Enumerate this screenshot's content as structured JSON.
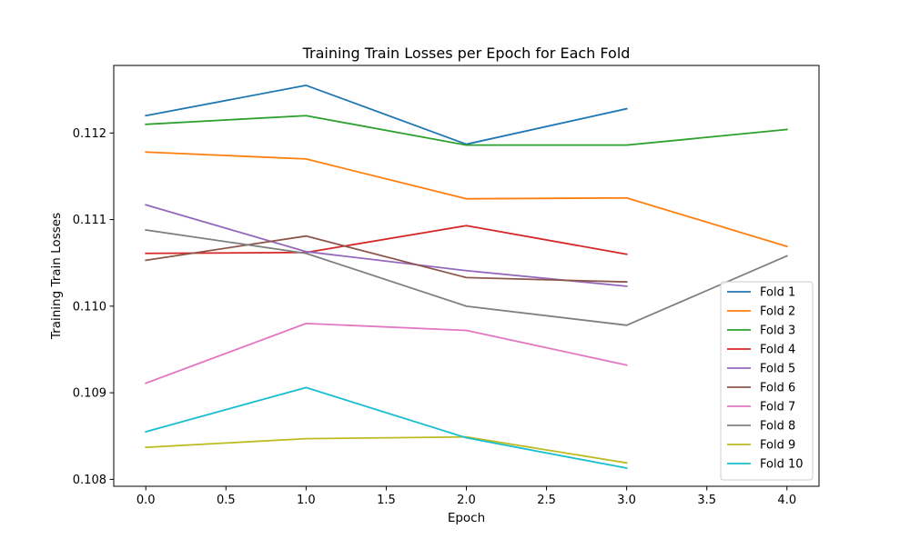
{
  "chart_data": {
    "type": "line",
    "title": "Training Train Losses per Epoch for Each Fold",
    "xlabel": "Epoch",
    "ylabel": "Training Train Losses",
    "xlim": [
      -0.2,
      4.2
    ],
    "ylim": [
      0.10792,
      0.11278
    ],
    "x_ticks": [
      0.0,
      0.5,
      1.0,
      1.5,
      2.0,
      2.5,
      3.0,
      3.5,
      4.0
    ],
    "x_tick_labels": [
      "0.0",
      "0.5",
      "1.0",
      "1.5",
      "2.0",
      "2.5",
      "3.0",
      "3.5",
      "4.0"
    ],
    "y_ticks": [
      0.108,
      0.109,
      0.11,
      0.111,
      0.112
    ],
    "y_tick_labels": [
      "0.108",
      "0.109",
      "0.110",
      "0.111",
      "0.112"
    ],
    "grid": false,
    "legend_position": "lower-right",
    "series": [
      {
        "name": "Fold 1",
        "color": "#1f77b4",
        "x": [
          0,
          1,
          2,
          3
        ],
        "values": [
          0.1122,
          0.11255,
          0.11187,
          0.11228
        ]
      },
      {
        "name": "Fold 2",
        "color": "#ff7f0e",
        "x": [
          0,
          1,
          2,
          3,
          4
        ],
        "values": [
          0.11178,
          0.1117,
          0.11124,
          0.11125,
          0.11069
        ]
      },
      {
        "name": "Fold 3",
        "color": "#2ca02c",
        "x": [
          0,
          1,
          2,
          3,
          4
        ],
        "values": [
          0.1121,
          0.1122,
          0.11186,
          0.11186,
          0.11204
        ]
      },
      {
        "name": "Fold 4",
        "color": "#d62728",
        "x": [
          0,
          1,
          2,
          3
        ],
        "values": [
          0.11061,
          0.11062,
          0.11093,
          0.1106
        ]
      },
      {
        "name": "Fold 5",
        "color": "#9467bd",
        "x": [
          0,
          1,
          2,
          3
        ],
        "values": [
          0.11117,
          0.11063,
          0.11041,
          0.11023
        ]
      },
      {
        "name": "Fold 6",
        "color": "#8c564b",
        "x": [
          0,
          1,
          2,
          3
        ],
        "values": [
          0.11053,
          0.11081,
          0.11033,
          0.11028
        ]
      },
      {
        "name": "Fold 7",
        "color": "#e377c2",
        "x": [
          0,
          1,
          2,
          3
        ],
        "values": [
          0.10911,
          0.1098,
          0.10972,
          0.10932
        ]
      },
      {
        "name": "Fold 8",
        "color": "#7f7f7f",
        "x": [
          0,
          1,
          2,
          3,
          4
        ],
        "values": [
          0.11088,
          0.11061,
          0.11,
          0.10978,
          0.11058
        ]
      },
      {
        "name": "Fold 9",
        "color": "#bcbd22",
        "x": [
          0,
          1,
          2,
          3
        ],
        "values": [
          0.10837,
          0.10847,
          0.10849,
          0.10819
        ]
      },
      {
        "name": "Fold 10",
        "color": "#17becf",
        "x": [
          0,
          1,
          2,
          3
        ],
        "values": [
          0.10855,
          0.10906,
          0.10848,
          0.10813
        ]
      }
    ]
  }
}
